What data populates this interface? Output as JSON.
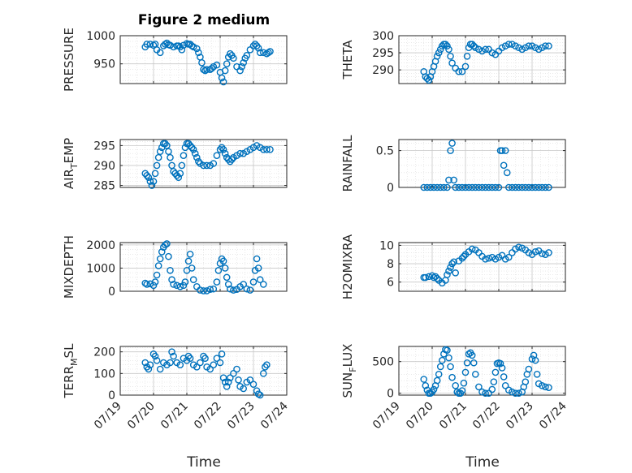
{
  "figure": {
    "title": "Figure 2 medium",
    "marker_color": "#0072BD",
    "axis_color": "#262626",
    "grid_color": "#DCDCDC"
  },
  "chart_data": [
    {
      "type": "scatter",
      "ylabel": "PRESSURE",
      "ylim": [
        915,
        1000
      ],
      "yticks": [
        950,
        1000
      ],
      "xlim": [
        0,
        5
      ],
      "xticks": [
        0,
        1,
        2,
        3,
        4,
        5
      ],
      "xticklabels": [
        "07/19",
        "07/20",
        "07/21",
        "07/22",
        "07/23",
        "07/24"
      ],
      "x": [
        0.75,
        0.8,
        0.9,
        1.0,
        1.05,
        1.1,
        1.2,
        1.3,
        1.35,
        1.4,
        1.45,
        1.5,
        1.6,
        1.7,
        1.75,
        1.8,
        1.85,
        1.9,
        2.0,
        2.05,
        2.1,
        2.15,
        2.2,
        2.3,
        2.35,
        2.4,
        2.45,
        2.5,
        2.55,
        2.6,
        2.7,
        2.75,
        2.8,
        2.9,
        3.0,
        3.05,
        3.1,
        3.15,
        3.2,
        3.25,
        3.3,
        3.35,
        3.4,
        3.5,
        3.6,
        3.65,
        3.7,
        3.75,
        3.8,
        3.9,
        4.0,
        4.05,
        4.1,
        4.15,
        4.2,
        4.3,
        4.4,
        4.45,
        4.5
      ],
      "y": [
        980,
        985,
        985,
        983,
        985,
        975,
        970,
        982,
        985,
        987,
        984,
        983,
        980,
        982,
        982,
        980,
        975,
        983,
        986,
        985,
        985,
        982,
        980,
        977,
        970,
        962,
        952,
        940,
        938,
        940,
        940,
        942,
        945,
        948,
        935,
        925,
        918,
        938,
        950,
        962,
        968,
        965,
        960,
        945,
        938,
        945,
        952,
        960,
        965,
        975,
        982,
        985,
        982,
        978,
        970,
        970,
        968,
        970,
        972
      ]
    },
    {
      "type": "scatter",
      "ylabel": "THETA",
      "ylim": [
        286,
        300
      ],
      "yticks": [
        290,
        295,
        300
      ],
      "xlim": [
        0,
        5
      ],
      "xticks": [
        0,
        1,
        2,
        3,
        4,
        5
      ],
      "xticklabels": [
        "07/19",
        "07/20",
        "07/21",
        "07/22",
        "07/23",
        "07/24"
      ],
      "x": [
        0.75,
        0.8,
        0.85,
        0.9,
        0.95,
        1.0,
        1.05,
        1.1,
        1.15,
        1.2,
        1.25,
        1.3,
        1.35,
        1.4,
        1.45,
        1.5,
        1.55,
        1.6,
        1.7,
        1.8,
        1.9,
        2.0,
        2.05,
        2.1,
        2.15,
        2.2,
        2.25,
        2.3,
        2.4,
        2.5,
        2.6,
        2.7,
        2.8,
        2.9,
        3.0,
        3.1,
        3.2,
        3.3,
        3.4,
        3.5,
        3.6,
        3.7,
        3.8,
        3.9,
        4.0,
        4.1,
        4.2,
        4.3,
        4.4,
        4.5
      ],
      "y": [
        289.5,
        288,
        287.5,
        287,
        288,
        289.5,
        291,
        292.5,
        294,
        295,
        296,
        297,
        297.5,
        297.5,
        297,
        296,
        294,
        292,
        290.5,
        289.5,
        289.5,
        291,
        294,
        296.5,
        297.5,
        297.5,
        297,
        296.5,
        296,
        295.5,
        296,
        296,
        295,
        294.5,
        295.5,
        296.5,
        297,
        297.5,
        297.5,
        297,
        296.5,
        296,
        296.5,
        297,
        297,
        296.5,
        296,
        296.5,
        297,
        297
      ]
    },
    {
      "type": "scatter",
      "ylabel": "AIR_TEMP",
      "ylim": [
        284.5,
        296.5
      ],
      "yticks": [
        285,
        290,
        295
      ],
      "xlim": [
        0,
        5
      ],
      "xticks": [
        0,
        1,
        2,
        3,
        4,
        5
      ],
      "xticklabels": [
        "07/19",
        "07/20",
        "07/21",
        "07/22",
        "07/23",
        "07/24"
      ],
      "x": [
        0.75,
        0.8,
        0.85,
        0.9,
        0.95,
        1.0,
        1.05,
        1.1,
        1.15,
        1.2,
        1.25,
        1.3,
        1.35,
        1.4,
        1.45,
        1.5,
        1.55,
        1.6,
        1.65,
        1.7,
        1.75,
        1.8,
        1.85,
        1.9,
        1.95,
        2.0,
        2.05,
        2.1,
        2.15,
        2.2,
        2.25,
        2.3,
        2.35,
        2.4,
        2.5,
        2.6,
        2.7,
        2.8,
        2.9,
        3.0,
        3.05,
        3.1,
        3.15,
        3.2,
        3.25,
        3.3,
        3.35,
        3.4,
        3.5,
        3.6,
        3.7,
        3.8,
        3.9,
        4.0,
        4.1,
        4.2,
        4.3,
        4.4,
        4.5
      ],
      "y": [
        288,
        287.5,
        287,
        286,
        285,
        286,
        288,
        290,
        292,
        293.5,
        294.5,
        295.5,
        295.5,
        295,
        293.5,
        292,
        290,
        288.5,
        288,
        287.5,
        287,
        288,
        290,
        292.5,
        294.5,
        295.5,
        295.5,
        295,
        294.5,
        294,
        293,
        292,
        291,
        290.5,
        290,
        290,
        290,
        290.5,
        292.5,
        294,
        294.5,
        294,
        293,
        292,
        291.5,
        291,
        291.5,
        292,
        292.5,
        293,
        293,
        293.5,
        294,
        294.5,
        295,
        294.5,
        294,
        294,
        294
      ]
    },
    {
      "type": "scatter",
      "ylabel": "RAINFALL",
      "ylim": [
        0,
        0.65
      ],
      "yticks": [
        0,
        0.5
      ],
      "xlim": [
        0,
        5
      ],
      "xticks": [
        0,
        1,
        2,
        3,
        4,
        5
      ],
      "xticklabels": [
        "07/19",
        "07/20",
        "07/21",
        "07/22",
        "07/23",
        "07/24"
      ],
      "x": [
        0.75,
        0.85,
        0.95,
        1.05,
        1.15,
        1.25,
        1.35,
        1.45,
        1.5,
        1.55,
        1.6,
        1.65,
        1.7,
        1.8,
        1.9,
        2.0,
        2.1,
        2.2,
        2.3,
        2.4,
        2.5,
        2.6,
        2.7,
        2.8,
        2.9,
        3.0,
        3.05,
        3.1,
        3.15,
        3.2,
        3.25,
        3.3,
        3.4,
        3.5,
        3.6,
        3.7,
        3.8,
        3.9,
        4.0,
        4.1,
        4.2,
        4.3,
        4.4,
        4.5
      ],
      "y": [
        0,
        0,
        0,
        0,
        0,
        0,
        0,
        0,
        0.1,
        0.5,
        0.6,
        0.1,
        0,
        0,
        0,
        0,
        0,
        0,
        0,
        0,
        0,
        0,
        0,
        0,
        0,
        0,
        0.5,
        0.5,
        0.3,
        0.5,
        0.2,
        0,
        0,
        0,
        0,
        0,
        0,
        0,
        0,
        0,
        0,
        0,
        0,
        0
      ]
    },
    {
      "type": "scatter",
      "ylabel": "MIXDEPTH",
      "ylim": [
        0,
        2100
      ],
      "yticks": [
        0,
        1000,
        2000
      ],
      "xlim": [
        0,
        5
      ],
      "xticks": [
        0,
        1,
        2,
        3,
        4,
        5
      ],
      "xticklabels": [
        "07/19",
        "07/20",
        "07/21",
        "07/22",
        "07/23",
        "07/24"
      ],
      "x": [
        0.75,
        0.8,
        0.9,
        1.0,
        1.05,
        1.1,
        1.15,
        1.2,
        1.25,
        1.3,
        1.35,
        1.4,
        1.45,
        1.5,
        1.55,
        1.6,
        1.7,
        1.8,
        1.9,
        1.95,
        2.0,
        2.05,
        2.1,
        2.15,
        2.2,
        2.3,
        2.4,
        2.5,
        2.6,
        2.7,
        2.8,
        2.9,
        2.95,
        3.0,
        3.05,
        3.1,
        3.15,
        3.2,
        3.25,
        3.3,
        3.4,
        3.5,
        3.6,
        3.7,
        3.8,
        3.9,
        4.0,
        4.05,
        4.1,
        4.15,
        4.2,
        4.3
      ],
      "y": [
        350,
        300,
        320,
        250,
        400,
        700,
        1100,
        1400,
        1700,
        1900,
        2000,
        2050,
        1500,
        900,
        500,
        300,
        250,
        200,
        250,
        400,
        900,
        1300,
        1600,
        1000,
        500,
        200,
        50,
        20,
        20,
        80,
        100,
        400,
        900,
        1200,
        1400,
        1300,
        1000,
        600,
        300,
        100,
        50,
        80,
        200,
        300,
        100,
        50,
        400,
        900,
        1400,
        1000,
        500,
        300
      ]
    },
    {
      "type": "scatter",
      "ylabel": "H2OMIXRA",
      "ylim": [
        5,
        10.3
      ],
      "yticks": [
        6,
        8,
        10
      ],
      "xlim": [
        0,
        5
      ],
      "xticks": [
        0,
        1,
        2,
        3,
        4,
        5
      ],
      "xticklabels": [
        "07/19",
        "07/20",
        "07/21",
        "07/22",
        "07/23",
        "07/24"
      ],
      "x": [
        0.75,
        0.8,
        0.9,
        1.0,
        1.05,
        1.1,
        1.15,
        1.2,
        1.3,
        1.4,
        1.45,
        1.5,
        1.55,
        1.6,
        1.65,
        1.7,
        1.8,
        1.9,
        1.95,
        2.0,
        2.1,
        2.2,
        2.3,
        2.4,
        2.5,
        2.6,
        2.7,
        2.8,
        2.9,
        3.0,
        3.1,
        3.2,
        3.3,
        3.4,
        3.5,
        3.6,
        3.7,
        3.8,
        3.9,
        4.0,
        4.1,
        4.2,
        4.3,
        4.4,
        4.5
      ],
      "y": [
        6.5,
        6.5,
        6.6,
        6.7,
        6.5,
        6.6,
        6.4,
        6.2,
        5.9,
        6.2,
        6.8,
        7.2,
        7.6,
        8.0,
        8.2,
        7.0,
        8.3,
        8.6,
        8.8,
        9.0,
        9.3,
        9.6,
        9.5,
        9.2,
        8.8,
        8.5,
        8.6,
        8.7,
        8.5,
        8.7,
        8.9,
        8.5,
        8.7,
        9.2,
        9.6,
        9.8,
        9.7,
        9.5,
        9.2,
        9.0,
        9.3,
        9.4,
        9.1,
        9.0,
        9.2
      ]
    },
    {
      "type": "scatter",
      "ylabel": "TERR_MSL",
      "ylim": [
        0,
        225
      ],
      "yticks": [
        0,
        100,
        200
      ],
      "xlim": [
        0,
        5
      ],
      "xticks": [
        0,
        1,
        2,
        3,
        4,
        5
      ],
      "xticklabels": [
        "07/19",
        "07/20",
        "07/21",
        "07/22",
        "07/23",
        "07/24"
      ],
      "x": [
        0.75,
        0.8,
        0.85,
        0.9,
        1.0,
        1.05,
        1.1,
        1.2,
        1.3,
        1.4,
        1.5,
        1.55,
        1.6,
        1.7,
        1.8,
        1.9,
        2.0,
        2.05,
        2.1,
        2.2,
        2.3,
        2.4,
        2.5,
        2.55,
        2.6,
        2.7,
        2.8,
        2.9,
        3.0,
        3.05,
        3.1,
        3.15,
        3.2,
        3.25,
        3.3,
        3.4,
        3.5,
        3.55,
        3.6,
        3.7,
        3.8,
        3.9,
        4.0,
        4.1,
        4.15,
        4.2,
        4.3,
        4.35,
        4.4
      ],
      "y": [
        150,
        130,
        120,
        140,
        190,
        180,
        160,
        120,
        150,
        140,
        150,
        200,
        180,
        150,
        140,
        170,
        160,
        180,
        170,
        140,
        130,
        150,
        180,
        170,
        130,
        120,
        140,
        170,
        150,
        190,
        80,
        60,
        40,
        60,
        80,
        100,
        120,
        70,
        40,
        30,
        60,
        70,
        50,
        20,
        5,
        0,
        100,
        130,
        140
      ]
    },
    {
      "type": "scatter",
      "ylabel": "SUN_FLUX",
      "ylim": [
        -30,
        740
      ],
      "yticks": [
        0,
        500
      ],
      "xlim": [
        0,
        5
      ],
      "xticks": [
        0,
        1,
        2,
        3,
        4,
        5
      ],
      "xticklabels": [
        "07/19",
        "07/20",
        "07/21",
        "07/22",
        "07/23",
        "07/24"
      ],
      "x": [
        0.75,
        0.8,
        0.85,
        0.9,
        0.95,
        1.0,
        1.05,
        1.1,
        1.15,
        1.2,
        1.25,
        1.3,
        1.35,
        1.4,
        1.45,
        1.5,
        1.55,
        1.6,
        1.7,
        1.75,
        1.8,
        1.85,
        1.9,
        1.95,
        2.0,
        2.05,
        2.1,
        2.15,
        2.2,
        2.25,
        2.3,
        2.4,
        2.5,
        2.6,
        2.7,
        2.8,
        2.85,
        2.9,
        2.95,
        3.0,
        3.05,
        3.1,
        3.15,
        3.2,
        3.3,
        3.4,
        3.5,
        3.6,
        3.7,
        3.75,
        3.8,
        3.85,
        3.9,
        4.0,
        4.05,
        4.1,
        4.15,
        4.2,
        4.3,
        4.4,
        4.5
      ],
      "y": [
        220,
        120,
        50,
        0,
        0,
        20,
        60,
        120,
        200,
        300,
        420,
        520,
        620,
        690,
        680,
        560,
        420,
        250,
        120,
        20,
        0,
        0,
        40,
        160,
        330,
        480,
        620,
        640,
        600,
        480,
        300,
        100,
        20,
        0,
        0,
        60,
        180,
        330,
        470,
        480,
        470,
        400,
        260,
        120,
        50,
        20,
        0,
        0,
        20,
        100,
        180,
        300,
        380,
        540,
        600,
        520,
        300,
        150,
        120,
        100,
        90
      ]
    }
  ],
  "axis_labels": {
    "x_left": "Time",
    "x_right": "Time"
  }
}
